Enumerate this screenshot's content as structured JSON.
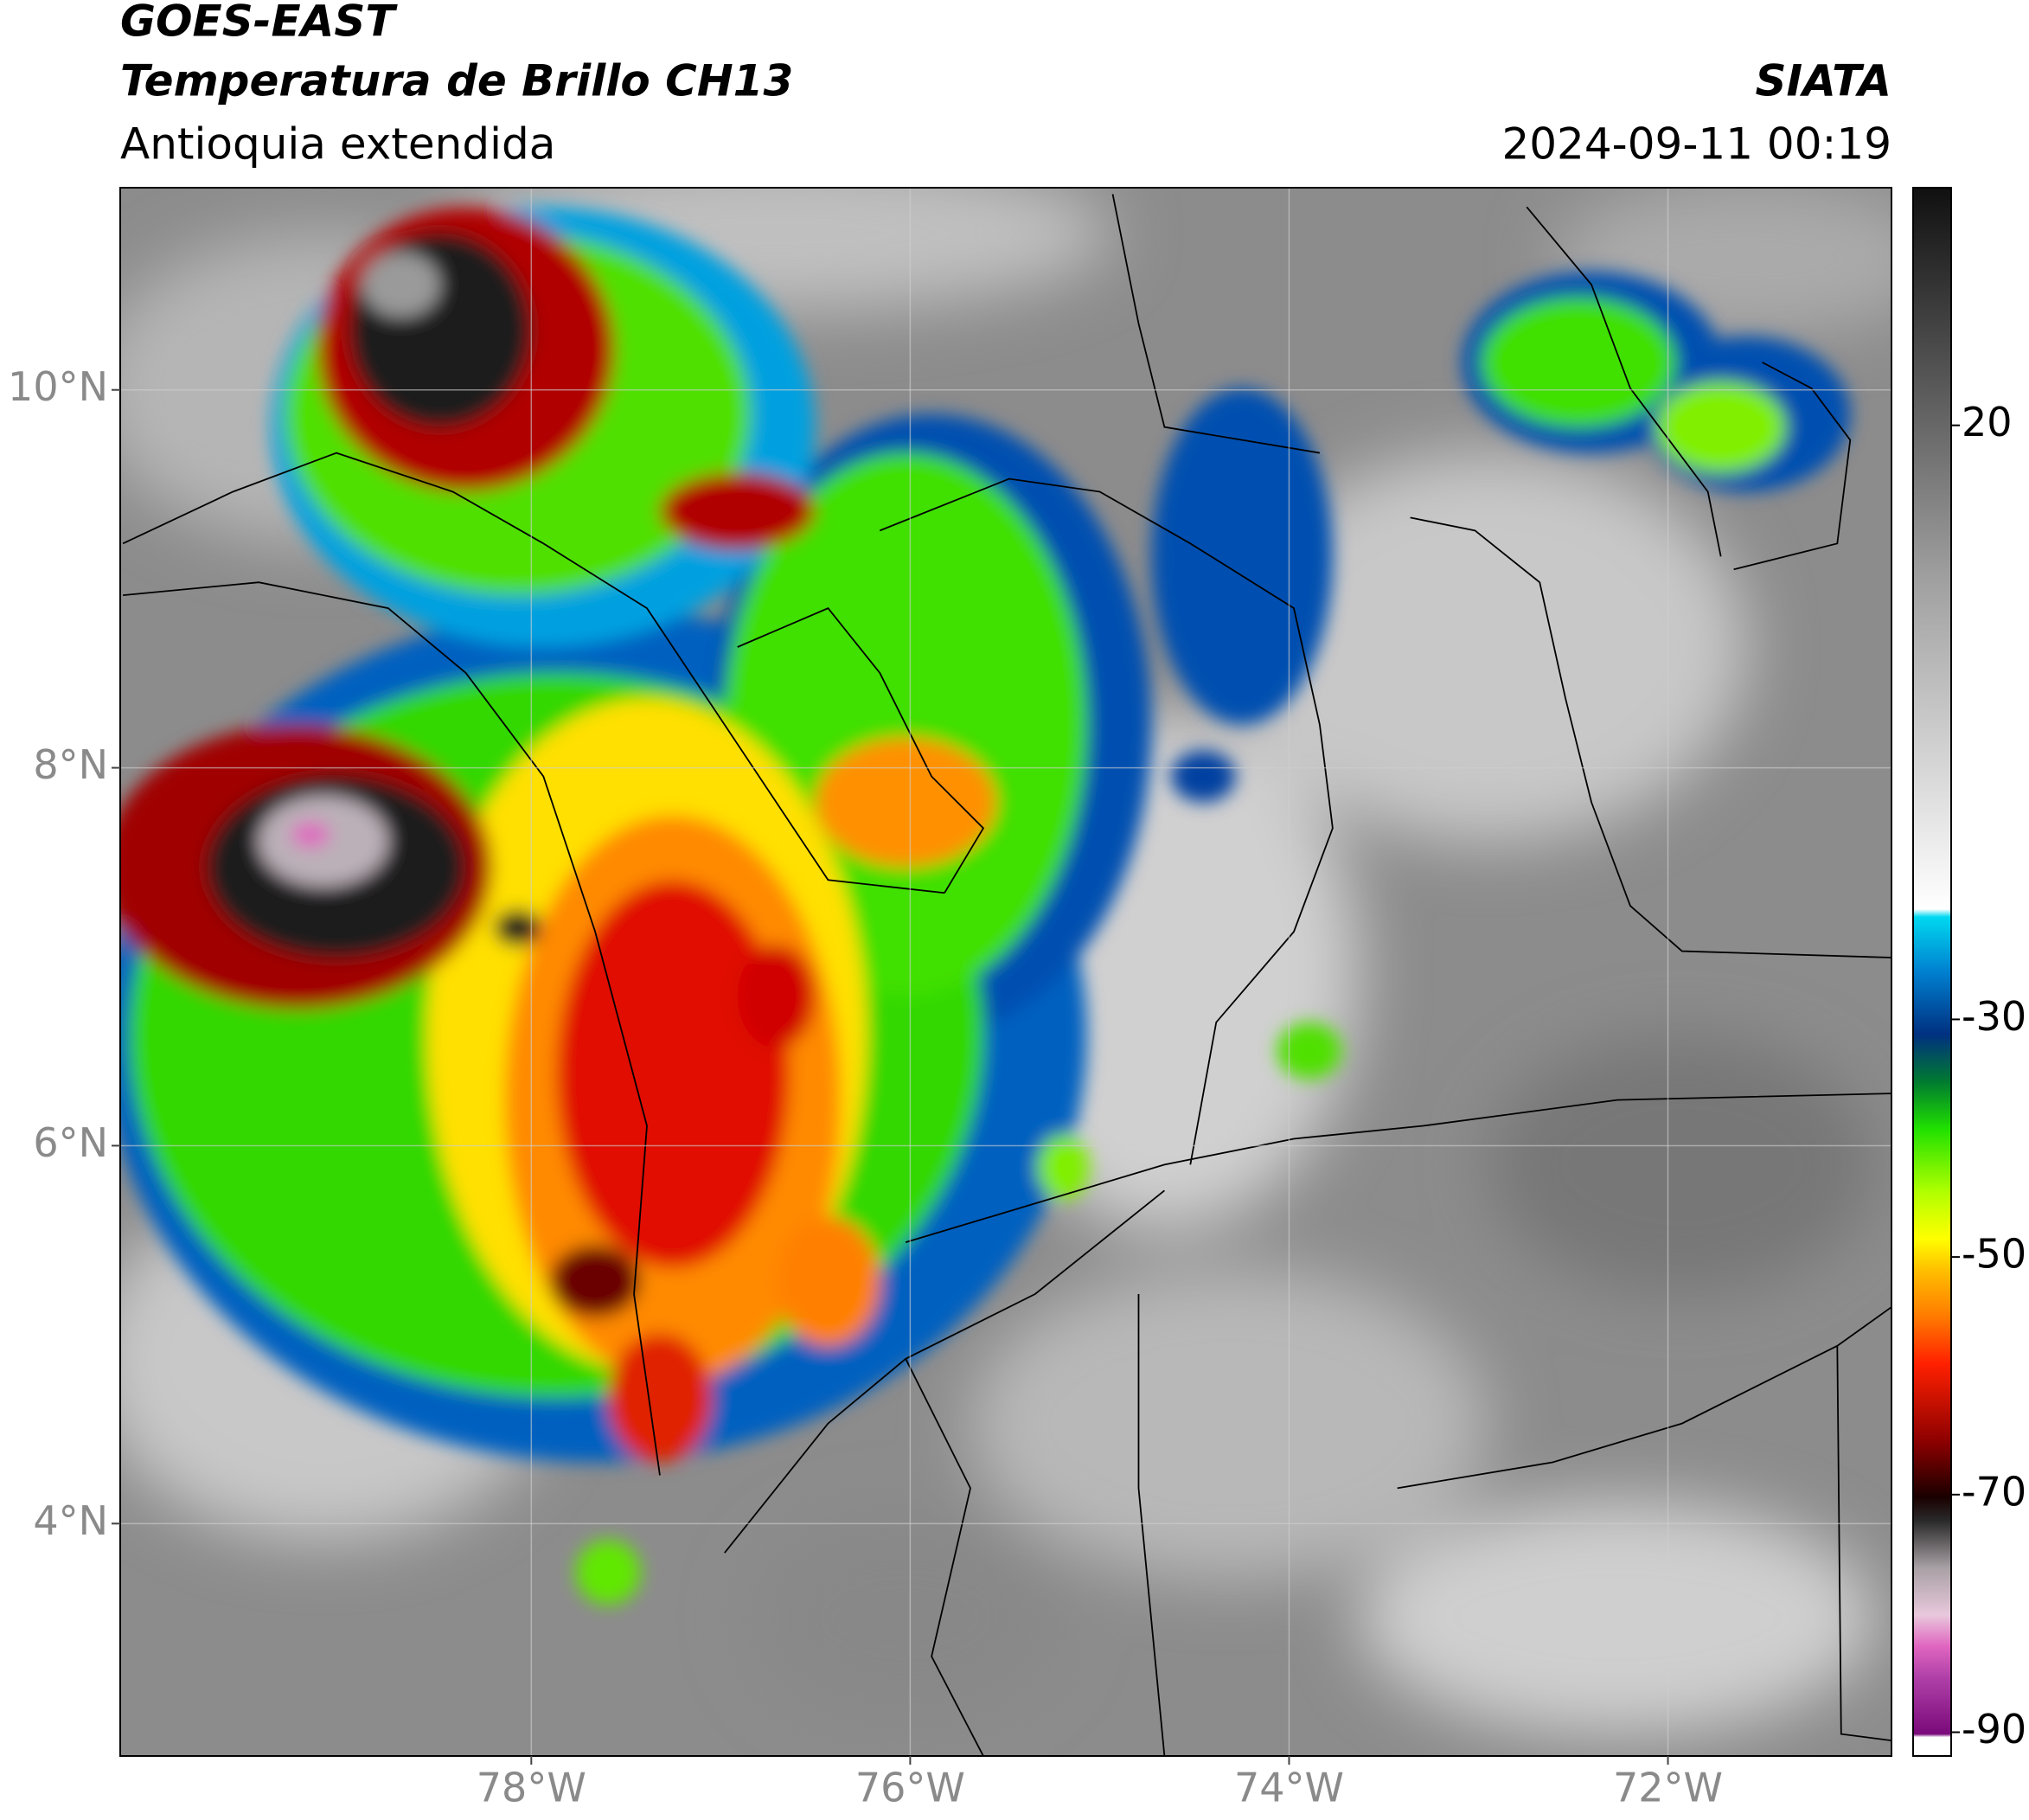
{
  "chart_data": {
    "type": "map",
    "title": "GOES-EAST",
    "subtitle": "Temperatura de Brillo CH13",
    "region": "Antioquia extendida",
    "source": "SIATA",
    "timestamp": "2024-09-11 00:19",
    "xlim": [
      -80.17,
      -70.82
    ],
    "ylim": [
      2.77,
      11.07
    ],
    "xticks": [
      {
        "value": -78,
        "label": "78°W"
      },
      {
        "value": -76,
        "label": "76°W"
      },
      {
        "value": -74,
        "label": "74°W"
      },
      {
        "value": -72,
        "label": "72°W"
      }
    ],
    "yticks": [
      {
        "value": 4,
        "label": "4°N"
      },
      {
        "value": 6,
        "label": "6°N"
      },
      {
        "value": 8,
        "label": "8°N"
      },
      {
        "value": 10,
        "label": "10°N"
      }
    ],
    "grid": true,
    "colorbar": {
      "lim": [
        -92,
        40
      ],
      "ticks": [
        -90,
        -70,
        -50,
        -30,
        20
      ]
    }
  }
}
